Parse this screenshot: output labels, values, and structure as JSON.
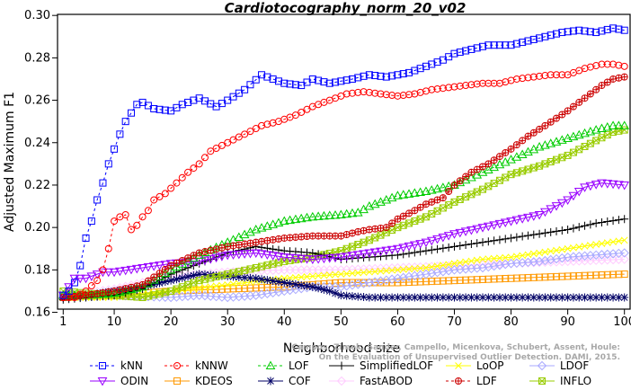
{
  "chart_data": {
    "type": "line",
    "title": "Cardiotocography_norm_20_v02",
    "xlabel": "Neighborhood size",
    "ylabel": "Adjusted Maximum F1",
    "xlim": [
      1,
      100
    ],
    "ylim": [
      0.16,
      0.3
    ],
    "xticks": [
      1,
      10,
      20,
      30,
      40,
      50,
      60,
      70,
      80,
      90,
      100
    ],
    "yticks": [
      0.16,
      0.18,
      0.2,
      0.22,
      0.24,
      0.26,
      0.28,
      0.3
    ],
    "ytick_labels": [
      "0.16",
      "0.18",
      "0.20",
      "0.22",
      "0.24",
      "0.26",
      "0.28",
      "0.30"
    ],
    "grid": false,
    "legend_position": "bottom",
    "citation": [
      "Campos, Zimek, Sander, Campello, Micenkova, Schubert, Assent, Houle:",
      "On the Evaluation of Unsupervised Outlier Detection. DAMI, 2015."
    ],
    "series": [
      {
        "name": "kNN",
        "color": "#0000ff",
        "marker": "square",
        "dashed": true,
        "points": [
          [
            1,
            0.168
          ],
          [
            2,
            0.17
          ],
          [
            3,
            0.174
          ],
          [
            4,
            0.182
          ],
          [
            5,
            0.195
          ],
          [
            6,
            0.203
          ],
          [
            7,
            0.213
          ],
          [
            8,
            0.221
          ],
          [
            9,
            0.23
          ],
          [
            10,
            0.237
          ],
          [
            11,
            0.244
          ],
          [
            12,
            0.25
          ],
          [
            13,
            0.254
          ],
          [
            14,
            0.258
          ],
          [
            15,
            0.259
          ],
          [
            17,
            0.256
          ],
          [
            20,
            0.255
          ],
          [
            22,
            0.258
          ],
          [
            25,
            0.261
          ],
          [
            28,
            0.257
          ],
          [
            30,
            0.26
          ],
          [
            33,
            0.265
          ],
          [
            36,
            0.272
          ],
          [
            38,
            0.27
          ],
          [
            40,
            0.268
          ],
          [
            43,
            0.267
          ],
          [
            45,
            0.27
          ],
          [
            48,
            0.268
          ],
          [
            52,
            0.27
          ],
          [
            55,
            0.272
          ],
          [
            58,
            0.271
          ],
          [
            62,
            0.273
          ],
          [
            65,
            0.276
          ],
          [
            68,
            0.279
          ],
          [
            70,
            0.282
          ],
          [
            73,
            0.284
          ],
          [
            76,
            0.286
          ],
          [
            80,
            0.286
          ],
          [
            83,
            0.288
          ],
          [
            86,
            0.29
          ],
          [
            89,
            0.292
          ],
          [
            92,
            0.293
          ],
          [
            95,
            0.292
          ],
          [
            98,
            0.294
          ],
          [
            100,
            0.293
          ]
        ]
      },
      {
        "name": "kNNW",
        "color": "#ff0000",
        "marker": "circle",
        "dashed": true,
        "points": [
          [
            1,
            0.167
          ],
          [
            3,
            0.167
          ],
          [
            5,
            0.17
          ],
          [
            7,
            0.175
          ],
          [
            8,
            0.18
          ],
          [
            9,
            0.19
          ],
          [
            10,
            0.203
          ],
          [
            11,
            0.205
          ],
          [
            12,
            0.206
          ],
          [
            13,
            0.199
          ],
          [
            14,
            0.201
          ],
          [
            15,
            0.205
          ],
          [
            16,
            0.208
          ],
          [
            17,
            0.213
          ],
          [
            19,
            0.216
          ],
          [
            21,
            0.221
          ],
          [
            23,
            0.226
          ],
          [
            25,
            0.23
          ],
          [
            27,
            0.236
          ],
          [
            30,
            0.24
          ],
          [
            33,
            0.244
          ],
          [
            36,
            0.248
          ],
          [
            39,
            0.25
          ],
          [
            42,
            0.253
          ],
          [
            45,
            0.257
          ],
          [
            48,
            0.26
          ],
          [
            51,
            0.263
          ],
          [
            54,
            0.264
          ],
          [
            57,
            0.263
          ],
          [
            60,
            0.262
          ],
          [
            63,
            0.263
          ],
          [
            66,
            0.265
          ],
          [
            69,
            0.266
          ],
          [
            72,
            0.267
          ],
          [
            75,
            0.268
          ],
          [
            78,
            0.268
          ],
          [
            81,
            0.27
          ],
          [
            84,
            0.271
          ],
          [
            87,
            0.272
          ],
          [
            90,
            0.272
          ],
          [
            93,
            0.275
          ],
          [
            96,
            0.277
          ],
          [
            98,
            0.277
          ],
          [
            100,
            0.276
          ]
        ]
      },
      {
        "name": "LOF",
        "color": "#00cc00",
        "marker": "triangle-up",
        "dashed": true,
        "points": [
          [
            1,
            0.168
          ],
          [
            5,
            0.168
          ],
          [
            10,
            0.169
          ],
          [
            15,
            0.172
          ],
          [
            20,
            0.18
          ],
          [
            25,
            0.187
          ],
          [
            30,
            0.193
          ],
          [
            35,
            0.199
          ],
          [
            40,
            0.203
          ],
          [
            45,
            0.205
          ],
          [
            50,
            0.206
          ],
          [
            53,
            0.207
          ],
          [
            55,
            0.21
          ],
          [
            58,
            0.213
          ],
          [
            60,
            0.215
          ],
          [
            65,
            0.217
          ],
          [
            70,
            0.22
          ],
          [
            75,
            0.226
          ],
          [
            80,
            0.232
          ],
          [
            85,
            0.238
          ],
          [
            90,
            0.242
          ],
          [
            95,
            0.246
          ],
          [
            98,
            0.248
          ],
          [
            100,
            0.248
          ]
        ]
      },
      {
        "name": "SimplifiedLOF",
        "color": "#000000",
        "marker": "plus",
        "dashed": false,
        "points": [
          [
            1,
            0.166
          ],
          [
            5,
            0.167
          ],
          [
            10,
            0.168
          ],
          [
            15,
            0.171
          ],
          [
            20,
            0.178
          ],
          [
            25,
            0.183
          ],
          [
            30,
            0.188
          ],
          [
            35,
            0.191
          ],
          [
            40,
            0.189
          ],
          [
            45,
            0.188
          ],
          [
            50,
            0.185
          ],
          [
            55,
            0.186
          ],
          [
            60,
            0.187
          ],
          [
            65,
            0.189
          ],
          [
            70,
            0.191
          ],
          [
            75,
            0.193
          ],
          [
            80,
            0.195
          ],
          [
            85,
            0.197
          ],
          [
            90,
            0.199
          ],
          [
            95,
            0.202
          ],
          [
            100,
            0.204
          ]
        ]
      },
      {
        "name": "LoOP",
        "color": "#ffff00",
        "marker": "x",
        "dashed": false,
        "points": [
          [
            1,
            0.167
          ],
          [
            10,
            0.167
          ],
          [
            20,
            0.17
          ],
          [
            30,
            0.173
          ],
          [
            40,
            0.176
          ],
          [
            50,
            0.178
          ],
          [
            60,
            0.18
          ],
          [
            65,
            0.181
          ],
          [
            70,
            0.183
          ],
          [
            75,
            0.185
          ],
          [
            80,
            0.186
          ],
          [
            85,
            0.188
          ],
          [
            90,
            0.19
          ],
          [
            95,
            0.192
          ],
          [
            100,
            0.194
          ]
        ]
      },
      {
        "name": "LDOF",
        "color": "#aaaaff",
        "marker": "diamond",
        "dashed": false,
        "points": [
          [
            1,
            0.167
          ],
          [
            10,
            0.168
          ],
          [
            20,
            0.167
          ],
          [
            25,
            0.168
          ],
          [
            30,
            0.167
          ],
          [
            35,
            0.168
          ],
          [
            40,
            0.17
          ],
          [
            45,
            0.172
          ],
          [
            50,
            0.172
          ],
          [
            55,
            0.174
          ],
          [
            60,
            0.176
          ],
          [
            65,
            0.178
          ],
          [
            70,
            0.18
          ],
          [
            75,
            0.181
          ],
          [
            80,
            0.183
          ],
          [
            85,
            0.184
          ],
          [
            90,
            0.186
          ],
          [
            95,
            0.187
          ],
          [
            100,
            0.188
          ]
        ]
      },
      {
        "name": "ODIN",
        "color": "#9900ff",
        "marker": "triangle-down",
        "dashed": false,
        "points": [
          [
            1,
            0.168
          ],
          [
            3,
            0.176
          ],
          [
            5,
            0.176
          ],
          [
            8,
            0.179
          ],
          [
            10,
            0.179
          ],
          [
            15,
            0.181
          ],
          [
            20,
            0.183
          ],
          [
            25,
            0.184
          ],
          [
            30,
            0.187
          ],
          [
            35,
            0.188
          ],
          [
            40,
            0.186
          ],
          [
            45,
            0.185
          ],
          [
            50,
            0.186
          ],
          [
            55,
            0.188
          ],
          [
            60,
            0.19
          ],
          [
            65,
            0.193
          ],
          [
            70,
            0.197
          ],
          [
            75,
            0.2
          ],
          [
            80,
            0.203
          ],
          [
            85,
            0.206
          ],
          [
            90,
            0.213
          ],
          [
            93,
            0.219
          ],
          [
            96,
            0.221
          ],
          [
            100,
            0.22
          ]
        ]
      },
      {
        "name": "KDEOS",
        "color": "#ff9900",
        "marker": "square",
        "dashed": false,
        "points": [
          [
            1,
            0.167
          ],
          [
            10,
            0.168
          ],
          [
            20,
            0.17
          ],
          [
            30,
            0.171
          ],
          [
            40,
            0.172
          ],
          [
            50,
            0.174
          ],
          [
            60,
            0.174
          ],
          [
            70,
            0.175
          ],
          [
            80,
            0.176
          ],
          [
            90,
            0.177
          ],
          [
            100,
            0.178
          ]
        ]
      },
      {
        "name": "COF",
        "color": "#000066",
        "marker": "asterisk",
        "dashed": false,
        "points": [
          [
            1,
            0.167
          ],
          [
            5,
            0.168
          ],
          [
            10,
            0.17
          ],
          [
            15,
            0.172
          ],
          [
            20,
            0.175
          ],
          [
            25,
            0.178
          ],
          [
            30,
            0.177
          ],
          [
            35,
            0.176
          ],
          [
            40,
            0.174
          ],
          [
            45,
            0.172
          ],
          [
            48,
            0.17
          ],
          [
            50,
            0.168
          ],
          [
            55,
            0.167
          ],
          [
            60,
            0.167
          ],
          [
            70,
            0.167
          ],
          [
            80,
            0.167
          ],
          [
            90,
            0.167
          ],
          [
            100,
            0.167
          ]
        ]
      },
      {
        "name": "FastABOD",
        "color": "#ffccff",
        "marker": "diamond",
        "dashed": false,
        "points": [
          [
            1,
            0.168
          ],
          [
            5,
            0.169
          ],
          [
            10,
            0.171
          ],
          [
            15,
            0.174
          ],
          [
            20,
            0.177
          ],
          [
            25,
            0.178
          ],
          [
            30,
            0.179
          ],
          [
            40,
            0.18
          ],
          [
            50,
            0.18
          ],
          [
            60,
            0.181
          ],
          [
            70,
            0.182
          ],
          [
            80,
            0.183
          ],
          [
            90,
            0.184
          ],
          [
            100,
            0.185
          ]
        ]
      },
      {
        "name": "LDF",
        "color": "#cc0000",
        "marker": "circle-plus",
        "dashed": true,
        "points": [
          [
            1,
            0.167
          ],
          [
            5,
            0.168
          ],
          [
            10,
            0.17
          ],
          [
            15,
            0.173
          ],
          [
            20,
            0.182
          ],
          [
            25,
            0.188
          ],
          [
            30,
            0.191
          ],
          [
            35,
            0.193
          ],
          [
            40,
            0.195
          ],
          [
            45,
            0.196
          ],
          [
            50,
            0.196
          ],
          [
            53,
            0.198
          ],
          [
            55,
            0.199
          ],
          [
            58,
            0.2
          ],
          [
            60,
            0.204
          ],
          [
            63,
            0.208
          ],
          [
            65,
            0.211
          ],
          [
            68,
            0.214
          ],
          [
            70,
            0.22
          ],
          [
            73,
            0.226
          ],
          [
            76,
            0.23
          ],
          [
            80,
            0.237
          ],
          [
            83,
            0.243
          ],
          [
            86,
            0.248
          ],
          [
            90,
            0.255
          ],
          [
            93,
            0.261
          ],
          [
            96,
            0.267
          ],
          [
            98,
            0.27
          ],
          [
            100,
            0.271
          ]
        ]
      },
      {
        "name": "INFLO",
        "color": "#99cc00",
        "marker": "square-x",
        "dashed": false,
        "points": [
          [
            1,
            0.17
          ],
          [
            5,
            0.169
          ],
          [
            10,
            0.168
          ],
          [
            15,
            0.167
          ],
          [
            20,
            0.17
          ],
          [
            25,
            0.175
          ],
          [
            30,
            0.178
          ],
          [
            35,
            0.181
          ],
          [
            40,
            0.184
          ],
          [
            45,
            0.186
          ],
          [
            50,
            0.189
          ],
          [
            55,
            0.194
          ],
          [
            60,
            0.2
          ],
          [
            65,
            0.205
          ],
          [
            70,
            0.212
          ],
          [
            75,
            0.218
          ],
          [
            80,
            0.225
          ],
          [
            85,
            0.229
          ],
          [
            90,
            0.234
          ],
          [
            95,
            0.241
          ],
          [
            98,
            0.245
          ],
          [
            100,
            0.246
          ]
        ]
      }
    ]
  }
}
